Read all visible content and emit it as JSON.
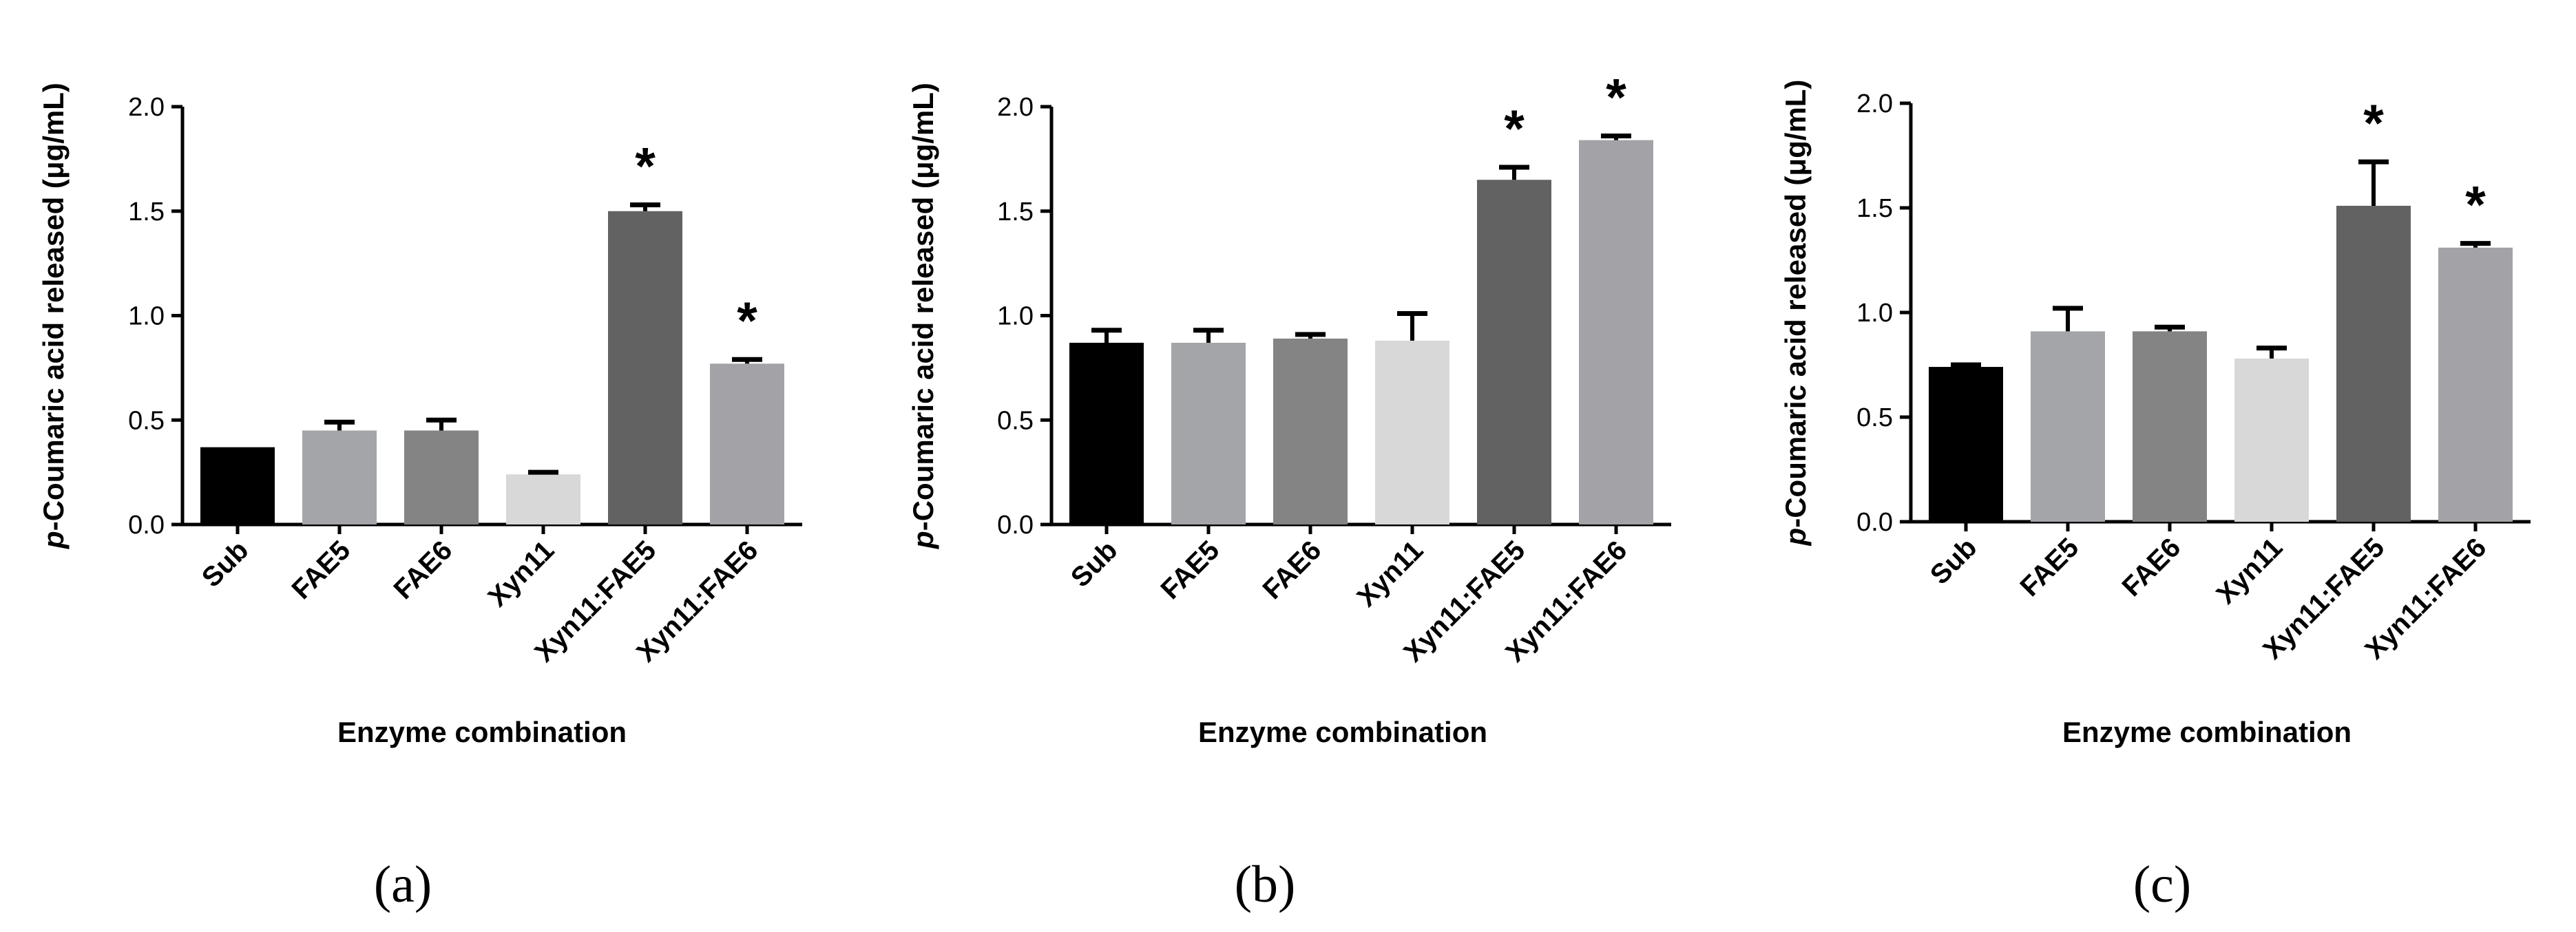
{
  "chart_data": [
    {
      "type": "bar",
      "panel_label": "(a)",
      "xlabel": "Enzyme combination",
      "ylabel_italic": "p",
      "ylabel_rest": "-Coumaric acid released (μg/mL)",
      "ylim": [
        0,
        2.0
      ],
      "yticks": [
        "0.0",
        "0.5",
        "1.0",
        "1.5",
        "2.0"
      ],
      "categories": [
        "Sub",
        "FAE5",
        "FAE6",
        "Xyn11",
        "Xyn11:FAE5",
        "Xyn11:FAE6"
      ],
      "values": [
        0.37,
        0.45,
        0.45,
        0.24,
        1.5,
        0.77
      ],
      "errors": [
        0.0,
        0.04,
        0.05,
        0.01,
        0.03,
        0.02
      ],
      "significant": [
        false,
        false,
        false,
        false,
        true,
        true
      ],
      "significance_mark": "*",
      "colors": [
        "#000000",
        "#a4a5a9",
        "#848484",
        "#d8d8d8",
        "#626262",
        "#a3a3a7"
      ]
    },
    {
      "type": "bar",
      "panel_label": "(b)",
      "xlabel": "Enzyme combination",
      "ylabel_italic": "p",
      "ylabel_rest": "-Coumaric acid released (μg/mL)",
      "ylim": [
        0,
        2.0
      ],
      "yticks": [
        "0.0",
        "0.5",
        "1.0",
        "1.5",
        "2.0"
      ],
      "categories": [
        "Sub",
        "FAE5",
        "FAE6",
        "Xyn11",
        "Xyn11:FAE5",
        "Xyn11:FAE6"
      ],
      "values": [
        0.87,
        0.87,
        0.89,
        0.88,
        1.65,
        1.84
      ],
      "errors": [
        0.06,
        0.06,
        0.02,
        0.13,
        0.06,
        0.02
      ],
      "significant": [
        false,
        false,
        false,
        false,
        true,
        true
      ],
      "significance_mark": "*",
      "colors": [
        "#000000",
        "#a4a5a9",
        "#848484",
        "#d8d8d8",
        "#626262",
        "#a3a3a7"
      ]
    },
    {
      "type": "bar",
      "panel_label": "(c)",
      "xlabel": "Enzyme combination",
      "ylabel_italic": "p",
      "ylabel_rest": "-Coumaric acid released (μg/mL)",
      "ylim": [
        0,
        2.0
      ],
      "yticks": [
        "0.0",
        "0.5",
        "1.0",
        "1.5",
        "2.0"
      ],
      "categories": [
        "Sub",
        "FAE5",
        "FAE6",
        "Xyn11",
        "Xyn11:FAE5",
        "Xyn11:FAE6"
      ],
      "values": [
        0.74,
        0.91,
        0.91,
        0.78,
        1.51,
        1.31
      ],
      "errors": [
        0.01,
        0.11,
        0.02,
        0.05,
        0.21,
        0.02
      ],
      "significant": [
        false,
        false,
        false,
        false,
        true,
        true
      ],
      "significance_mark": "*",
      "colors": [
        "#000000",
        "#a4a5a9",
        "#848484",
        "#d8d8d8",
        "#626262",
        "#a3a3a7"
      ]
    }
  ]
}
